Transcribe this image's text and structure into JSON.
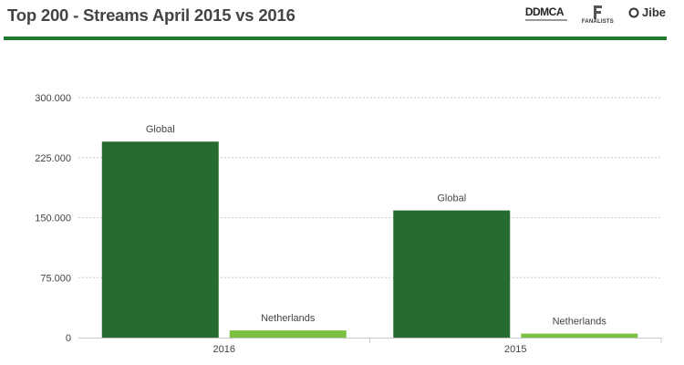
{
  "header": {
    "title": "Top 200 - Streams April 2015 vs 2016",
    "logos": [
      {
        "name": "ddmca-logo",
        "text": "DDMCA"
      },
      {
        "name": "fanalists-logo",
        "text": "FANALISTS"
      },
      {
        "name": "jibe-logo",
        "text": "Jibe"
      }
    ]
  },
  "colors": {
    "accent": "#1f7a2f",
    "global_bar": "#266b30",
    "netherlands_bar": "#7ac143",
    "grid": "#cccccc",
    "text": "#444444"
  },
  "chart_data": {
    "type": "bar",
    "categories": [
      "2016",
      "2015"
    ],
    "series": [
      {
        "name": "Global",
        "values": [
          245000,
          159000
        ]
      },
      {
        "name": "Netherlands",
        "values": [
          9000,
          5000
        ]
      }
    ],
    "title": "Top 200 - Streams April 2015 vs 2016",
    "xlabel": "",
    "ylabel": "",
    "ylim": [
      0,
      300000
    ],
    "yticks": [
      0,
      75000,
      150000,
      225000,
      300000
    ],
    "ytick_labels": [
      "0",
      "75.000",
      "150.000",
      "225.000",
      "300.000"
    ],
    "grid": true,
    "legend": "none (series labels shown above bars)"
  }
}
